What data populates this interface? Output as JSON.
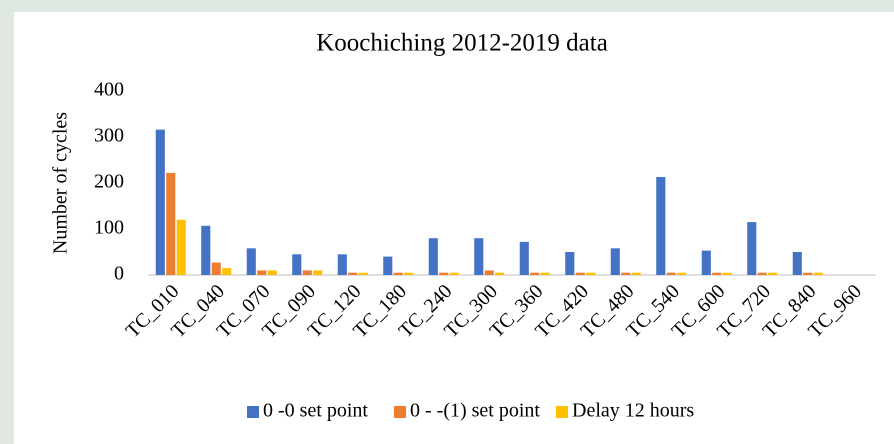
{
  "chart_data": {
    "type": "bar",
    "title": "Koochiching 2012-2019 data",
    "y_label": "Number of cycles",
    "categories": [
      "TC_010",
      "TC_040",
      "TC_070",
      "TC_090",
      "TC_120",
      "TC_180",
      "TC_240",
      "TC_300",
      "TC_360",
      "TC_420",
      "TC_480",
      "TC_540",
      "TC_600",
      "TC_720",
      "TC_840",
      "TC_960"
    ],
    "series": [
      {
        "name": "0 -0 set point",
        "color": "#4472c4",
        "values": [
          316,
          107,
          58,
          45,
          45,
          40,
          80,
          80,
          72,
          50,
          58,
          213,
          53,
          115,
          50,
          0
        ]
      },
      {
        "name": "0 - -(1) set point",
        "color": "#ed7d31",
        "values": [
          222,
          27,
          10,
          10,
          5,
          5,
          5,
          10,
          5,
          5,
          5,
          5,
          5,
          5,
          5,
          0
        ]
      },
      {
        "name": "Delay 12 hours",
        "color": "#ffc000",
        "values": [
          120,
          15,
          10,
          10,
          5,
          5,
          5,
          5,
          5,
          5,
          5,
          5,
          5,
          5,
          5,
          0
        ]
      }
    ],
    "ylim": [
      0,
      400
    ],
    "yticks": [
      0,
      100,
      200,
      300,
      400
    ],
    "grid": false,
    "legend": "bottom"
  }
}
